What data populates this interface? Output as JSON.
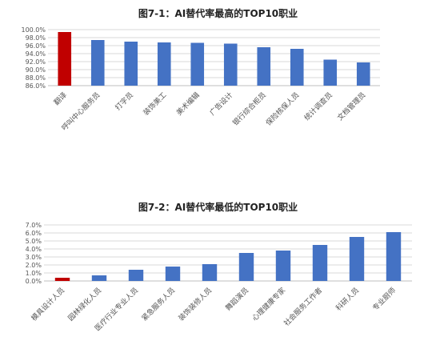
{
  "chart_data": [
    {
      "type": "bar",
      "title": "图7-1：AI替代率最高的TOP10职业",
      "categories": [
        "翻译",
        "呼叫中心服务员",
        "打字员",
        "装饰美工",
        "美术编辑",
        "广告设计",
        "银行综合柜员",
        "保险核保人员",
        "统计调查员",
        "文档管理员"
      ],
      "values": [
        99.4,
        97.4,
        97.0,
        96.8,
        96.7,
        96.5,
        95.6,
        95.2,
        92.5,
        91.8
      ],
      "highlight_index": 0,
      "ylim": [
        86,
        100
      ],
      "yticks": [
        "100.0%",
        "98.0%",
        "96.0%",
        "94.0%",
        "92.0%",
        "90.0%",
        "88.0%",
        "86.0%"
      ],
      "grid": true,
      "colors": {
        "bar": "#4472C4",
        "highlight": "#C00000"
      }
    },
    {
      "type": "bar",
      "title": "图7-2：AI替代率最低的TOP10职业",
      "categories": [
        "模具设计人员",
        "园林绿化人员",
        "医疗行业专业人员",
        "紧急服务人员",
        "装饰装修人员",
        "舞蹈演员",
        "心理健康专家",
        "社会服务工作者",
        "科研人员",
        "专业厨师"
      ],
      "values": [
        0.4,
        0.7,
        1.4,
        1.8,
        2.1,
        3.5,
        3.8,
        4.5,
        5.5,
        6.1
      ],
      "highlight_index": 0,
      "ylim": [
        0,
        7
      ],
      "yticks": [
        "7.0%",
        "6.0%",
        "5.0%",
        "4.0%",
        "3.0%",
        "2.0%",
        "1.0%",
        "0.0%"
      ],
      "grid": true,
      "colors": {
        "bar": "#4472C4",
        "highlight": "#C00000"
      }
    }
  ]
}
